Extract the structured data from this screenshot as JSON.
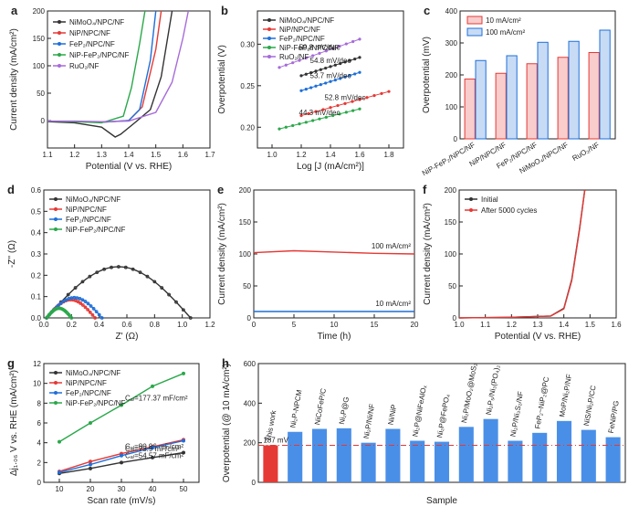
{
  "panels": [
    {
      "id": "a",
      "type": "line",
      "ylabel": "Current density (mA/cm²)",
      "xlabel": "Potential (V vs. RHE)",
      "xlim": [
        1.1,
        1.7
      ],
      "ylim": [
        -50,
        200
      ],
      "xticks": [
        1.1,
        1.2,
        1.3,
        1.4,
        1.5,
        1.6,
        1.7
      ],
      "yticks": [
        0,
        50,
        100,
        150,
        200
      ],
      "series": [
        {
          "name": "NiMoO₄/NPC/NF",
          "color": "#333333",
          "points": [
            [
              1.1,
              -2
            ],
            [
              1.2,
              -4
            ],
            [
              1.3,
              -12
            ],
            [
              1.35,
              -30
            ],
            [
              1.37,
              -25
            ],
            [
              1.42,
              -5
            ],
            [
              1.48,
              20
            ],
            [
              1.52,
              80
            ],
            [
              1.56,
              200
            ]
          ]
        },
        {
          "name": "NiP/NPC/NF",
          "color": "#e53935",
          "points": [
            [
              1.1,
              -1
            ],
            [
              1.2,
              -2
            ],
            [
              1.3,
              -3
            ],
            [
              1.4,
              0
            ],
            [
              1.45,
              25
            ],
            [
              1.5,
              130
            ],
            [
              1.52,
              200
            ]
          ]
        },
        {
          "name": "FeP₂/NPC/NF",
          "color": "#1e6fd9",
          "points": [
            [
              1.1,
              -1
            ],
            [
              1.2,
              -2
            ],
            [
              1.3,
              -3
            ],
            [
              1.4,
              0
            ],
            [
              1.44,
              20
            ],
            [
              1.48,
              110
            ],
            [
              1.5,
              200
            ]
          ]
        },
        {
          "name": "NiP-FeP₂/NPC/NF",
          "color": "#2aa84a",
          "points": [
            [
              1.1,
              -1
            ],
            [
              1.2,
              -2
            ],
            [
              1.3,
              -4
            ],
            [
              1.38,
              8
            ],
            [
              1.41,
              60
            ],
            [
              1.44,
              140
            ],
            [
              1.46,
              200
            ]
          ]
        },
        {
          "name": "RuO₂/NF",
          "color": "#a66bd9",
          "points": [
            [
              1.1,
              -1
            ],
            [
              1.2,
              -1
            ],
            [
              1.3,
              -2
            ],
            [
              1.4,
              -1
            ],
            [
              1.5,
              15
            ],
            [
              1.56,
              70
            ],
            [
              1.6,
              150
            ],
            [
              1.62,
              200
            ]
          ]
        }
      ]
    },
    {
      "id": "b",
      "type": "scatter",
      "ylabel": "Overpotential (V)",
      "xlabel": "Log [J (mA/cm²)]",
      "xlim": [
        0.9,
        1.9
      ],
      "ylim": [
        0.175,
        0.34
      ],
      "xticks": [
        1.0,
        1.2,
        1.4,
        1.6,
        1.8
      ],
      "yticks": [
        0.2,
        0.25,
        0.3
      ],
      "series": [
        {
          "name": "NiMoO₄/NPC/NF",
          "color": "#333333",
          "x": [
            1.2,
            1.6
          ],
          "y": [
            0.262,
            0.284
          ],
          "slope": "54.8 mV/dec"
        },
        {
          "name": "NiP/NPC/NF",
          "color": "#e53935",
          "x": [
            1.2,
            1.8
          ],
          "y": [
            0.214,
            0.243
          ],
          "slope": "52.8 mV/dec"
        },
        {
          "name": "FeP₂/NPC/NF",
          "color": "#1e6fd9",
          "x": [
            1.2,
            1.6
          ],
          "y": [
            0.244,
            0.266
          ],
          "slope": "53.7 mV/dec"
        },
        {
          "name": "NiP-FeP₂/NPC/NF",
          "color": "#2aa84a",
          "x": [
            1.05,
            1.6
          ],
          "y": [
            0.198,
            0.222
          ],
          "slope": "44.3 mV/dec"
        },
        {
          "name": "RuO₂/NF",
          "color": "#a66bd9",
          "x": [
            1.05,
            1.6
          ],
          "y": [
            0.272,
            0.306
          ],
          "slope": "59.8 mV/dec"
        }
      ]
    },
    {
      "id": "c",
      "type": "bar",
      "ylabel": "Overpotential (mV)",
      "ylim": [
        0,
        400
      ],
      "yticks": [
        0,
        100,
        200,
        300,
        400
      ],
      "categories": [
        "NiP-FeP₂/NPC/NF",
        "NiP/NPC/NF",
        "FeP₂/NPC/NF",
        "NiMoO₄/NPC/NF",
        "RuO₂/NF"
      ],
      "series": [
        {
          "name": "10 mA/cm²",
          "color": "#e53935",
          "values": [
            187,
            205,
            235,
            255,
            270
          ]
        },
        {
          "name": "100 mA/cm²",
          "color": "#1e6fd9",
          "values": [
            245,
            260,
            302,
            305,
            340
          ]
        }
      ]
    },
    {
      "id": "d",
      "type": "nyquist",
      "ylabel": "-Z'' (Ω)",
      "xlabel": "Z' (Ω)",
      "xlim": [
        0,
        1.2
      ],
      "ylim": [
        0,
        0.6
      ],
      "xticks": [
        0.0,
        0.2,
        0.4,
        0.6,
        0.8,
        1.0,
        1.2
      ],
      "yticks": [
        0.0,
        0.1,
        0.2,
        0.3,
        0.4,
        0.5,
        0.6
      ],
      "series": [
        {
          "name": "NiMoO₄/NPC/NF",
          "color": "#333333",
          "r0": 0.02,
          "r1": 1.06,
          "hmax": 0.24
        },
        {
          "name": "NiP/NPC/NF",
          "color": "#e53935",
          "r0": 0.02,
          "r1": 0.37,
          "hmax": 0.085
        },
        {
          "name": "FeP₂/NPC/NF",
          "color": "#1e6fd9",
          "r0": 0.02,
          "r1": 0.42,
          "hmax": 0.095
        },
        {
          "name": "NiP-FeP₂/NPC/NF",
          "color": "#2aa84a",
          "r0": 0.02,
          "r1": 0.2,
          "hmax": 0.045
        }
      ]
    },
    {
      "id": "e",
      "type": "line",
      "ylabel": "Current density (mA/cm²)",
      "xlabel": "Time (h)",
      "xlim": [
        0,
        20
      ],
      "ylim": [
        0,
        200
      ],
      "xticks": [
        0,
        5,
        10,
        15,
        20
      ],
      "yticks": [
        0,
        50,
        100,
        150,
        200
      ],
      "series": [
        {
          "name": "100 mA/cm²",
          "color": "#e53935",
          "points": [
            [
              0,
              102
            ],
            [
              5,
              105
            ],
            [
              10,
              103
            ],
            [
              15,
              101
            ],
            [
              20,
              100
            ]
          ]
        },
        {
          "name": "10 mA/cm²",
          "color": "#1e6fd9",
          "points": [
            [
              0,
              10
            ],
            [
              20,
              10
            ]
          ]
        }
      ]
    },
    {
      "id": "f",
      "type": "line",
      "ylabel": "Current density (mA/cm²)",
      "xlabel": "Potential (V vs. RHE)",
      "xlim": [
        1.0,
        1.6
      ],
      "ylim": [
        0,
        200
      ],
      "xticks": [
        1.0,
        1.1,
        1.2,
        1.3,
        1.4,
        1.5,
        1.6
      ],
      "yticks": [
        0,
        50,
        100,
        150,
        200
      ],
      "series": [
        {
          "name": "Initial",
          "color": "#333333",
          "points": [
            [
              1.0,
              0
            ],
            [
              1.2,
              1
            ],
            [
              1.35,
              3
            ],
            [
              1.4,
              15
            ],
            [
              1.43,
              60
            ],
            [
              1.46,
              140
            ],
            [
              1.48,
              200
            ]
          ]
        },
        {
          "name": "After 5000 cycles",
          "color": "#e53935",
          "points": [
            [
              1.0,
              0
            ],
            [
              1.2,
              1
            ],
            [
              1.35,
              3
            ],
            [
              1.4,
              14
            ],
            [
              1.43,
              58
            ],
            [
              1.46,
              138
            ],
            [
              1.48,
              200
            ]
          ]
        }
      ]
    },
    {
      "id": "g",
      "type": "scatter",
      "ylabel": "Δj₁.₀₆ V vs. RHE (mA/cm²)",
      "xlabel": "Scan rate (mV/s)",
      "xlim": [
        5,
        55
      ],
      "ylim": [
        0,
        12
      ],
      "xticks": [
        10,
        20,
        30,
        40,
        50
      ],
      "yticks": [
        0,
        2,
        4,
        6,
        8,
        10,
        12
      ],
      "x": [
        10,
        20,
        30,
        40,
        50
      ],
      "series": [
        {
          "name": "NiMoO₄/NPC/NF",
          "color": "#333333",
          "values": [
            0.9,
            1.4,
            2.0,
            2.5,
            3.0
          ],
          "cdl": "Cₐₗ=54.57 mF/cm²"
        },
        {
          "name": "NiP/NPC/NF",
          "color": "#e53935",
          "values": [
            1.1,
            2.1,
            2.9,
            3.6,
            4.3
          ],
          "cdl": "Cₐₗ=80.96 mF/cm²"
        },
        {
          "name": "FeP₂/NPC/NF",
          "color": "#1e6fd9",
          "values": [
            1.0,
            1.8,
            2.7,
            3.5,
            4.2
          ],
          "cdl": "Cₐₗ=73.9 mF/cm²"
        },
        {
          "name": "NiP-FeP₂/NPC/NF",
          "color": "#2aa84a",
          "values": [
            4.1,
            6.0,
            7.8,
            9.7,
            11.0
          ],
          "cdl": "Cₐₗ=177.37 mF/cm²"
        }
      ]
    },
    {
      "id": "h",
      "type": "bar",
      "ylabel": "Overpotential (@ 10 mA/cm²)",
      "xlabel": "Sample",
      "ylim": [
        0,
        600
      ],
      "yticks": [
        0,
        200,
        400,
        600
      ],
      "refline": 187,
      "reflabel": "187 mV",
      "categories": [
        "This work",
        "Ni₂P-NPCM",
        "NiCoFeP/C",
        "Ni₂P@G",
        "Ni₂P/Ni/NF",
        "Ni/NiP",
        "Ni₂P@NiFeAlOₓ",
        "Ni₂P@FePO₄",
        "Ni₂P/MoO₂@MoS₂",
        "Ni₂P₅/Ni₃(PO₄)₂",
        "Ni₂P/Ni₃S₂/NF",
        "FeP₂−NiP₂@PC",
        "MoP/Ni₂P/NF",
        "NiS/Ni₂P/CC",
        "FeNiP/PG"
      ],
      "values": [
        187,
        255,
        270,
        273,
        200,
        270,
        210,
        205,
        280,
        320,
        210,
        250,
        310,
        265,
        228
      ]
    }
  ],
  "chart_data": {
    "type": "bar",
    "note": "see panels"
  }
}
